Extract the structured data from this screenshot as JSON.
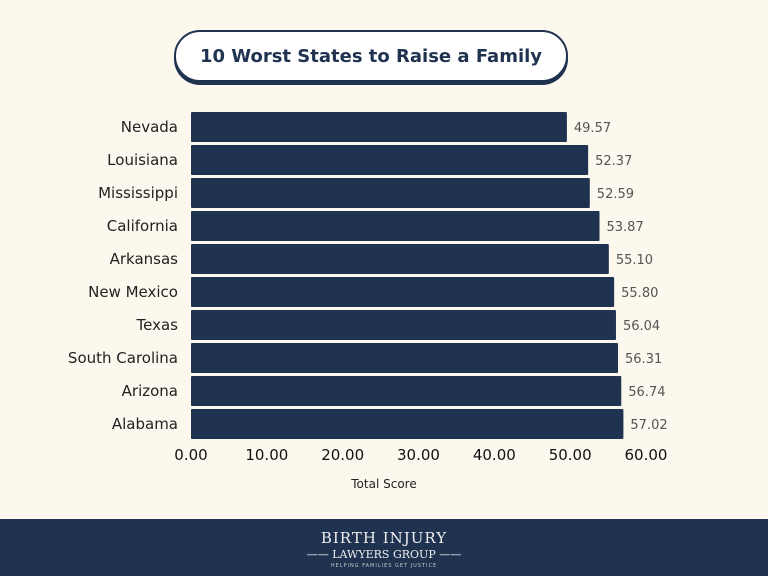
{
  "chart_data": {
    "type": "bar",
    "orientation": "horizontal",
    "title": "10 Worst States to Raise a Family",
    "xlabel": "Total Score",
    "ylabel": "",
    "xlim": [
      0,
      60
    ],
    "xticks": [
      "0.00",
      "10.00",
      "20.00",
      "30.00",
      "40.00",
      "50.00",
      "60.00"
    ],
    "categories": [
      "Nevada",
      "Louisiana",
      "Mississippi",
      "California",
      "Arkansas",
      "New Mexico",
      "Texas",
      "South Carolina",
      "Arizona",
      "Alabama"
    ],
    "values": [
      49.57,
      52.37,
      52.59,
      53.87,
      55.1,
      55.8,
      56.04,
      56.31,
      56.74,
      57.02
    ],
    "labels": [
      "49.57",
      "52.37",
      "52.59",
      "53.87",
      "55.10",
      "55.80",
      "56.04",
      "56.31",
      "56.74",
      "57.02"
    ],
    "grid": false,
    "bar_color": "#1f3250"
  },
  "footer": {
    "line1": "Birth Injury",
    "line2": "Lawyers Group",
    "tagline": "HELPING FAMILIES GET JUSTICE"
  }
}
